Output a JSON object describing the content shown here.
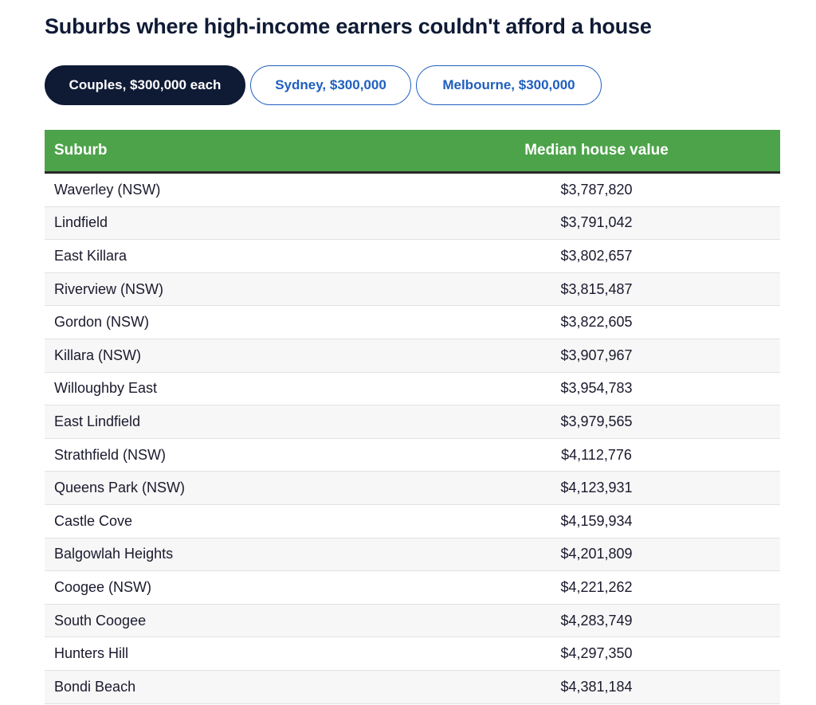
{
  "title": "Suburbs where high-income earners couldn't afford a house",
  "tabs": [
    {
      "label": "Couples, $300,000 each",
      "active": true
    },
    {
      "label": "Sydney, $300,000",
      "active": false
    },
    {
      "label": "Melbourne, $300,000",
      "active": false
    }
  ],
  "table": {
    "headers": {
      "suburb": "Suburb",
      "value": "Median house value"
    },
    "rows": [
      {
        "suburb": "Waverley (NSW)",
        "value": "$3,787,820"
      },
      {
        "suburb": "Lindfield",
        "value": "$3,791,042"
      },
      {
        "suburb": "East Killara",
        "value": "$3,802,657"
      },
      {
        "suburb": "Riverview (NSW)",
        "value": "$3,815,487"
      },
      {
        "suburb": "Gordon (NSW)",
        "value": "$3,822,605"
      },
      {
        "suburb": "Killara (NSW)",
        "value": "$3,907,967"
      },
      {
        "suburb": "Willoughby East",
        "value": "$3,954,783"
      },
      {
        "suburb": "East Lindfield",
        "value": "$3,979,565"
      },
      {
        "suburb": "Strathfield (NSW)",
        "value": "$4,112,776"
      },
      {
        "suburb": "Queens Park (NSW)",
        "value": "$4,123,931"
      },
      {
        "suburb": "Castle Cove",
        "value": "$4,159,934"
      },
      {
        "suburb": "Balgowlah Heights",
        "value": "$4,201,809"
      },
      {
        "suburb": "Coogee (NSW)",
        "value": "$4,221,262"
      },
      {
        "suburb": "South Coogee",
        "value": "$4,283,749"
      },
      {
        "suburb": "Hunters Hill",
        "value": "$4,297,350"
      },
      {
        "suburb": "Bondi Beach",
        "value": "$4,381,184"
      }
    ]
  },
  "colors": {
    "header_green": "#4da34a",
    "active_tab": "#0f1b35",
    "tab_accent": "#1f5fbf"
  }
}
